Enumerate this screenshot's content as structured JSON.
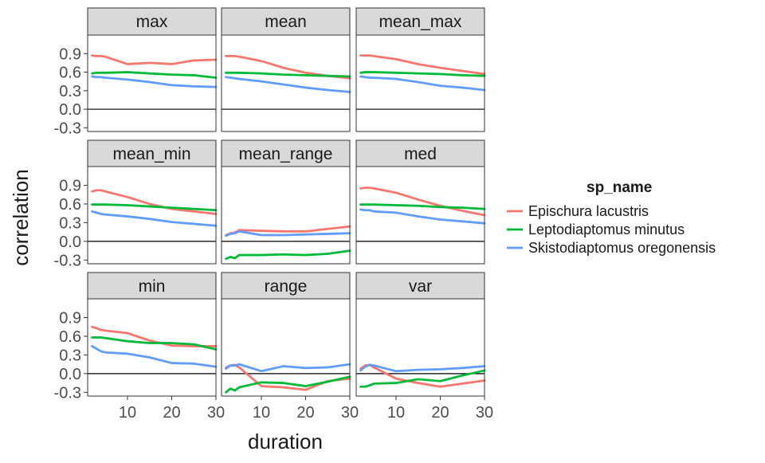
{
  "chart_data": {
    "type": "line",
    "xlabel": "duration",
    "ylabel": "correlation",
    "xlim": [
      1,
      30
    ],
    "ylim": [
      -0.36,
      1.2
    ],
    "x_ticks": [
      10,
      20,
      30
    ],
    "y_ticks": [
      -0.3,
      0.0,
      0.3,
      0.6,
      0.9
    ],
    "y_tick_labels": [
      "-0.3",
      "0.0",
      "0.3",
      "0.6",
      "0.9"
    ],
    "reference_line_y": 0,
    "grid": false,
    "legend": {
      "title": "sp_name",
      "placement": "right",
      "entries": [
        "Epischura lacustris",
        "Leptodiaptomus minutus",
        "Skistodiaptomus oregonensis"
      ]
    },
    "colors": {
      "Epischura lacustris": "#F8766D",
      "Leptodiaptomus minutus": "#00BA38",
      "Skistodiaptomus oregonensis": "#619CFF"
    },
    "x": [
      2,
      3,
      4,
      5,
      10,
      15,
      20,
      25,
      30
    ],
    "panels": [
      {
        "title": "max",
        "series": [
          {
            "name": "Epischura lacustris",
            "values": [
              0.87,
              0.86,
              0.86,
              0.85,
              0.73,
              0.75,
              0.73,
              0.79,
              0.8
            ]
          },
          {
            "name": "Leptodiaptomus minutus",
            "values": [
              0.58,
              0.59,
              0.59,
              0.59,
              0.6,
              0.58,
              0.56,
              0.55,
              0.51
            ]
          },
          {
            "name": "Skistodiaptomus oregonensis",
            "values": [
              0.53,
              0.52,
              0.52,
              0.51,
              0.48,
              0.44,
              0.39,
              0.37,
              0.36
            ]
          }
        ]
      },
      {
        "title": "mean",
        "series": [
          {
            "name": "Epischura lacustris",
            "values": [
              0.86,
              0.86,
              0.86,
              0.85,
              0.78,
              0.67,
              0.59,
              0.54,
              0.5
            ]
          },
          {
            "name": "Leptodiaptomus minutus",
            "values": [
              0.59,
              0.59,
              0.59,
              0.59,
              0.58,
              0.56,
              0.55,
              0.54,
              0.53
            ]
          },
          {
            "name": "Skistodiaptomus oregonensis",
            "values": [
              0.52,
              0.51,
              0.5,
              0.49,
              0.45,
              0.4,
              0.35,
              0.31,
              0.28
            ]
          }
        ]
      },
      {
        "title": "mean_max",
        "series": [
          {
            "name": "Epischura lacustris",
            "values": [
              0.87,
              0.87,
              0.87,
              0.86,
              0.81,
              0.73,
              0.67,
              0.62,
              0.57
            ]
          },
          {
            "name": "Leptodiaptomus minutus",
            "values": [
              0.59,
              0.6,
              0.6,
              0.6,
              0.59,
              0.58,
              0.57,
              0.55,
              0.54
            ]
          },
          {
            "name": "Skistodiaptomus oregonensis",
            "values": [
              0.53,
              0.52,
              0.51,
              0.51,
              0.49,
              0.44,
              0.38,
              0.35,
              0.31
            ]
          }
        ]
      },
      {
        "title": "mean_min",
        "series": [
          {
            "name": "Epischura lacustris",
            "values": [
              0.8,
              0.82,
              0.82,
              0.8,
              0.71,
              0.6,
              0.52,
              0.48,
              0.44
            ]
          },
          {
            "name": "Leptodiaptomus minutus",
            "values": [
              0.59,
              0.59,
              0.59,
              0.59,
              0.58,
              0.56,
              0.54,
              0.52,
              0.5
            ]
          },
          {
            "name": "Skistodiaptomus oregonensis",
            "values": [
              0.48,
              0.46,
              0.44,
              0.43,
              0.4,
              0.36,
              0.31,
              0.28,
              0.25
            ]
          }
        ]
      },
      {
        "title": "mean_range",
        "series": [
          {
            "name": "Epischura lacustris",
            "values": [
              0.1,
              0.13,
              0.14,
              0.18,
              0.17,
              0.16,
              0.16,
              0.2,
              0.24
            ]
          },
          {
            "name": "Leptodiaptomus minutus",
            "values": [
              -0.28,
              -0.25,
              -0.27,
              -0.22,
              -0.22,
              -0.21,
              -0.22,
              -0.2,
              -0.15
            ]
          },
          {
            "name": "Skistodiaptomus oregonensis",
            "values": [
              0.09,
              0.12,
              0.13,
              0.16,
              0.1,
              0.1,
              0.11,
              0.12,
              0.13
            ]
          }
        ]
      },
      {
        "title": "med",
        "series": [
          {
            "name": "Epischura lacustris",
            "values": [
              0.85,
              0.86,
              0.86,
              0.85,
              0.78,
              0.67,
              0.57,
              0.49,
              0.42
            ]
          },
          {
            "name": "Leptodiaptomus minutus",
            "values": [
              0.59,
              0.59,
              0.59,
              0.59,
              0.58,
              0.57,
              0.55,
              0.54,
              0.52
            ]
          },
          {
            "name": "Skistodiaptomus oregonensis",
            "values": [
              0.51,
              0.5,
              0.5,
              0.48,
              0.46,
              0.4,
              0.35,
              0.32,
              0.29
            ]
          }
        ]
      },
      {
        "title": "min",
        "series": [
          {
            "name": "Epischura lacustris",
            "values": [
              0.75,
              0.73,
              0.7,
              0.69,
              0.65,
              0.53,
              0.45,
              0.44,
              0.44
            ]
          },
          {
            "name": "Leptodiaptomus minutus",
            "values": [
              0.58,
              0.58,
              0.58,
              0.57,
              0.52,
              0.49,
              0.49,
              0.47,
              0.39
            ]
          },
          {
            "name": "Skistodiaptomus oregonensis",
            "values": [
              0.44,
              0.4,
              0.36,
              0.34,
              0.32,
              0.26,
              0.17,
              0.16,
              0.11
            ]
          }
        ]
      },
      {
        "title": "range",
        "series": [
          {
            "name": "Epischura lacustris",
            "values": [
              0.1,
              0.13,
              0.14,
              0.1,
              -0.2,
              -0.22,
              -0.26,
              -0.12,
              -0.08
            ]
          },
          {
            "name": "Leptodiaptomus minutus",
            "values": [
              -0.3,
              -0.24,
              -0.27,
              -0.22,
              -0.14,
              -0.15,
              -0.2,
              -0.13,
              -0.05
            ]
          },
          {
            "name": "Skistodiaptomus oregonensis",
            "values": [
              0.08,
              0.13,
              0.13,
              0.15,
              0.04,
              0.12,
              0.09,
              0.1,
              0.15
            ]
          }
        ]
      },
      {
        "title": "var",
        "series": [
          {
            "name": "Epischura lacustris",
            "values": [
              0.08,
              0.13,
              0.14,
              0.1,
              -0.08,
              -0.15,
              -0.21,
              -0.16,
              -0.11
            ]
          },
          {
            "name": "Leptodiaptomus minutus",
            "values": [
              -0.21,
              -0.21,
              -0.19,
              -0.16,
              -0.15,
              -0.09,
              -0.12,
              -0.03,
              0.05
            ]
          },
          {
            "name": "Skistodiaptomus oregonensis",
            "values": [
              0.05,
              0.11,
              0.14,
              0.13,
              0.04,
              0.06,
              0.07,
              0.09,
              0.12
            ]
          }
        ]
      }
    ]
  }
}
